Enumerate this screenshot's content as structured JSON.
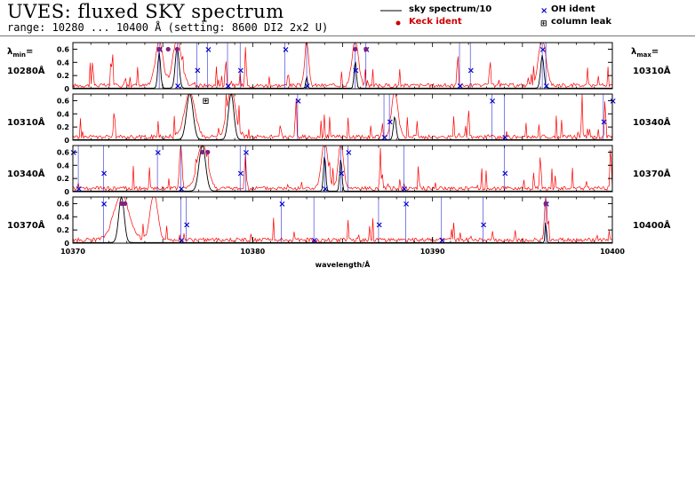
{
  "header": {
    "title": "UVES: fluxed SKY spectrum",
    "subtitle": "range: 10280 ... 10400 Å (setting: 8600 DI2 2x2 U)"
  },
  "legend": {
    "sky": "sky spectrum/10",
    "keck": "Keck ident",
    "oh": "OH ident",
    "leak": "column leak"
  },
  "side": {
    "lambda_min_label": "min",
    "lambda_max_label": "max",
    "lambda_prefix": "λ",
    "lambda_suffix": "="
  },
  "colors": {
    "spectrum": "#ff0000",
    "sky": "#000000",
    "oh": "#0000cc",
    "keck": "#cc0000",
    "keck_overlap": "#802080"
  },
  "chart_data": [
    {
      "type": "line",
      "xlim": [
        10280,
        10310
      ],
      "ylim": [
        0,
        0.7
      ],
      "yticks": [
        "0",
        "0.2",
        "0.4",
        "0.6"
      ],
      "min_label": "10280Å",
      "max_label": "10310Å",
      "sky_peaks": [
        [
          10284.8,
          0.55,
          0.25
        ],
        [
          10285.8,
          0.62,
          0.35
        ],
        [
          10293.0,
          0.18,
          0.15
        ],
        [
          10295.7,
          0.42,
          0.2
        ],
        [
          10306.1,
          0.5,
          0.3
        ]
      ],
      "red_peaks": [
        [
          10284.8,
          0.68,
          0.6
        ],
        [
          10285.8,
          0.7,
          0.7
        ],
        [
          10293.0,
          0.68,
          0.3
        ],
        [
          10295.7,
          0.7,
          0.5
        ],
        [
          10306.1,
          0.7,
          0.6
        ],
        [
          10281.1,
          0.4,
          0.1
        ],
        [
          10282.2,
          0.55,
          0.1
        ],
        [
          10288.5,
          0.45,
          0.1
        ],
        [
          10289.6,
          0.6,
          0.1
        ],
        [
          10301.4,
          0.55,
          0.1
        ],
        [
          10303.2,
          0.4,
          0.1
        ]
      ],
      "oh": [
        10284.8,
        10285.8,
        10286.9,
        10287.5,
        10288.6,
        10289.3,
        10291.8,
        10293.0,
        10295.7,
        10296.3,
        10301.5,
        10302.1,
        10306.1,
        10306.3
      ],
      "keck": [
        [
          10284.8,
          0.6
        ],
        [
          10285.8,
          0.6
        ],
        [
          10295.7,
          0.6
        ],
        [
          10296.3,
          0.6
        ],
        [
          10285.3,
          0.6
        ]
      ],
      "leak": []
    },
    {
      "type": "line",
      "xlim": [
        10310,
        10340
      ],
      "ylim": [
        0,
        0.7
      ],
      "yticks": [
        "0",
        "0.2",
        "0.4",
        "0.6"
      ],
      "min_label": "10310Å",
      "max_label": "10340Å",
      "sky_peaks": [
        [
          10316.5,
          0.7,
          0.6
        ],
        [
          10318.8,
          0.7,
          0.5
        ],
        [
          10327.9,
          0.35,
          0.25
        ]
      ],
      "red_peaks": [
        [
          10316.5,
          0.7,
          0.8
        ],
        [
          10318.8,
          0.7,
          0.7
        ],
        [
          10327.9,
          0.7,
          0.5
        ],
        [
          10332.0,
          0.45,
          0.1
        ],
        [
          10338.3,
          0.4,
          0.1
        ],
        [
          10339.6,
          0.6,
          0.1
        ],
        [
          10312.3,
          0.45,
          0.1
        ],
        [
          10322.4,
          0.5,
          0.1
        ]
      ],
      "oh": [
        10322.5,
        10327.3,
        10327.6,
        10333.3,
        10334.0,
        10339.5,
        10340.0
      ],
      "keck": [],
      "leak": [
        [
          10317.4,
          0.6
        ]
      ]
    },
    {
      "type": "line",
      "xlim": [
        10340,
        10370
      ],
      "ylim": [
        0,
        0.7
      ],
      "yticks": [
        "0",
        "0.2",
        "0.4",
        "0.6"
      ],
      "min_label": "10340Å",
      "max_label": "10370Å",
      "sky_peaks": [
        [
          10347.2,
          0.7,
          0.6
        ],
        [
          10354.0,
          0.55,
          0.2
        ],
        [
          10354.9,
          0.5,
          0.2
        ]
      ],
      "red_peaks": [
        [
          10347.2,
          0.7,
          0.8
        ],
        [
          10354.0,
          0.7,
          0.5
        ],
        [
          10354.9,
          0.7,
          0.4
        ],
        [
          10346.0,
          0.7,
          0.2
        ],
        [
          10349.6,
          0.5,
          0.1
        ],
        [
          10357.1,
          0.6,
          0.1
        ],
        [
          10366.0,
          0.55,
          0.1
        ],
        [
          10369.9,
          0.7,
          0.1
        ]
      ],
      "oh": [
        10340.0,
        10340.3,
        10341.7,
        10344.7,
        10346.0,
        10349.3,
        10349.6,
        10354.0,
        10354.9,
        10355.3,
        10358.4,
        10364.0
      ],
      "keck": [
        [
          10347.2,
          0.6
        ],
        [
          10347.5,
          0.6
        ]
      ],
      "leak": []
    },
    {
      "type": "line",
      "xlim": [
        10370,
        10400
      ],
      "ylim": [
        0,
        0.7
      ],
      "yticks": [
        "0",
        "0.2",
        "0.4",
        "0.6"
      ],
      "min_label": "10370Å",
      "max_label": "10400Å",
      "sky_peaks": [
        [
          10372.7,
          0.7,
          0.5
        ],
        [
          10396.3,
          0.35,
          0.12
        ]
      ],
      "red_peaks": [
        [
          10372.7,
          0.7,
          1.2
        ],
        [
          10374.5,
          0.7,
          0.6
        ],
        [
          10396.3,
          0.65,
          0.2
        ]
      ],
      "oh": [
        10371.7,
        10376.0,
        10376.3,
        10381.6,
        10383.4,
        10387.0,
        10388.5,
        10390.5,
        10392.8,
        10396.3
      ],
      "keck": [
        [
          10372.7,
          0.6
        ],
        [
          10372.9,
          0.6
        ],
        [
          10396.3,
          0.6
        ]
      ],
      "leak": [],
      "xticks": [
        "10370",
        "10380",
        "10390",
        "10400"
      ],
      "xlabel": "wavelength/Å"
    }
  ]
}
